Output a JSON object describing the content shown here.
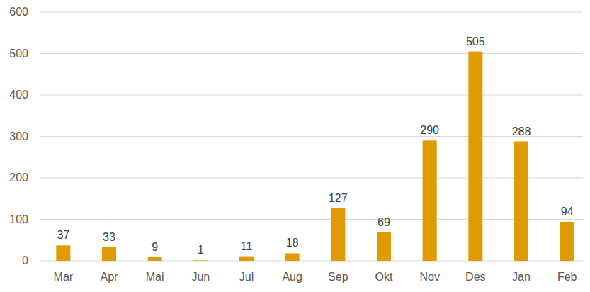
{
  "chart_data": {
    "type": "bar",
    "categories": [
      "Mar",
      "Apr",
      "Mai",
      "Jun",
      "Jul",
      "Aug",
      "Sep",
      "Okt",
      "Nov",
      "Des",
      "Jan",
      "Feb"
    ],
    "values": [
      37,
      33,
      9,
      1,
      11,
      18,
      127,
      69,
      290,
      505,
      288,
      94
    ],
    "color": "#e09b00",
    "ylim": [
      0,
      600
    ],
    "yticks": [
      0,
      100,
      200,
      300,
      400,
      500,
      600
    ],
    "grid": true,
    "data_labels": true
  }
}
